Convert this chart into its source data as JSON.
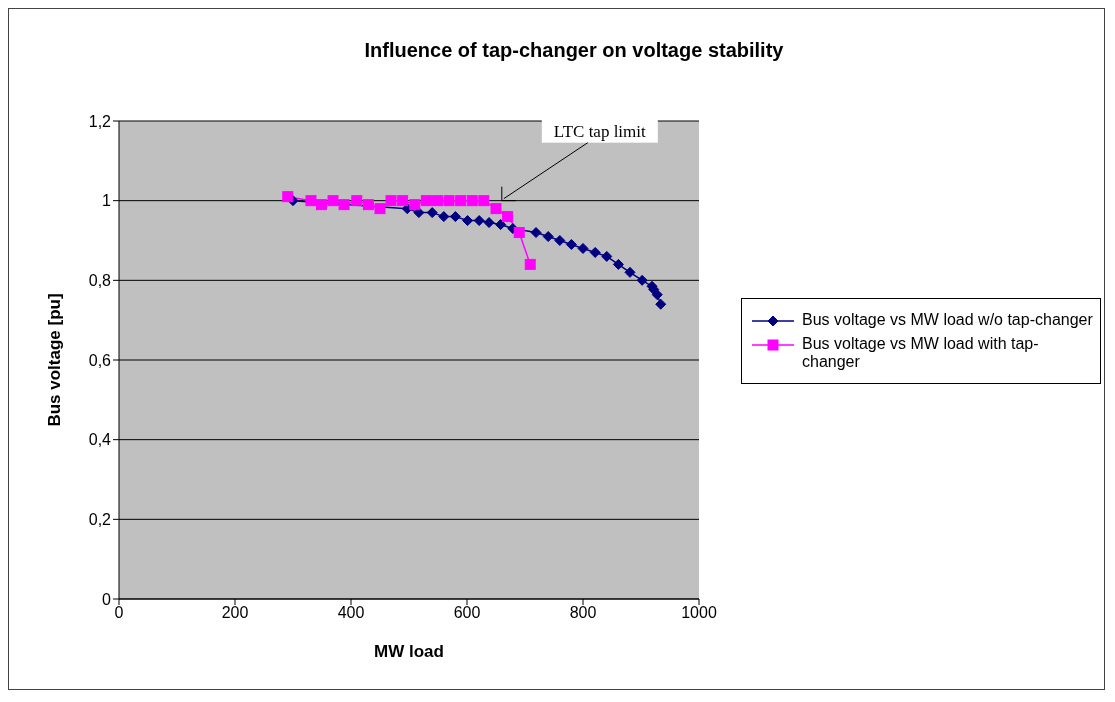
{
  "chart_data": {
    "type": "line",
    "title": "Influence of tap-changer on voltage stability",
    "xlabel": "MW load",
    "ylabel": "Bus voltage [pu]",
    "xlim": [
      0,
      1000
    ],
    "xticks": [
      0,
      200,
      400,
      600,
      800,
      1000
    ],
    "ylim": [
      0,
      1.2
    ],
    "yticks": [
      {
        "value": 0,
        "label": "0"
      },
      {
        "value": 0.2,
        "label": "0,2"
      },
      {
        "value": 0.4,
        "label": "0,4"
      },
      {
        "value": 0.6,
        "label": "0,6"
      },
      {
        "value": 0.8,
        "label": "0,8"
      },
      {
        "value": 1,
        "label": "1"
      },
      {
        "value": 1.2,
        "label": "1,2"
      }
    ],
    "grid": "y",
    "legend": "right",
    "annotations": [
      {
        "text": "LTC tap limit",
        "x": 660,
        "y": 1.0
      }
    ],
    "series": [
      {
        "name": "Bus voltage vs MW load w/o tap-changer",
        "color": "#000080",
        "marker": "diamond",
        "x": [
          300,
          350,
          398,
          447,
          497,
          517,
          540,
          560,
          580,
          601,
          621,
          638,
          658,
          679,
          699,
          719,
          740,
          760,
          780,
          800,
          821,
          841,
          861,
          881,
          902,
          919,
          922,
          928,
          934
        ],
        "values": [
          1.0,
          null,
          null,
          null,
          0.98,
          0.97,
          0.97,
          0.96,
          0.96,
          0.95,
          0.95,
          0.945,
          0.94,
          0.93,
          null,
          0.92,
          0.91,
          0.9,
          0.89,
          0.88,
          0.87,
          0.86,
          0.84,
          0.82,
          0.8,
          0.785,
          0.777,
          0.764,
          0.74
        ]
      },
      {
        "name": "Bus voltage vs MW load with tap-changer",
        "color": "#ff00ff",
        "marker": "square",
        "x": [
          291,
          331,
          349,
          369,
          388,
          410,
          430,
          450,
          469,
          489,
          510,
          530,
          549,
          569,
          589,
          609,
          629,
          650,
          670,
          690,
          709
        ],
        "values": [
          1.01,
          1.0,
          0.99,
          1.0,
          0.99,
          1.0,
          0.99,
          0.98,
          1.0,
          1.0,
          0.99,
          1.0,
          1.0,
          1.0,
          1.0,
          1.0,
          1.0,
          0.98,
          0.96,
          0.92,
          0.84
        ]
      }
    ]
  }
}
